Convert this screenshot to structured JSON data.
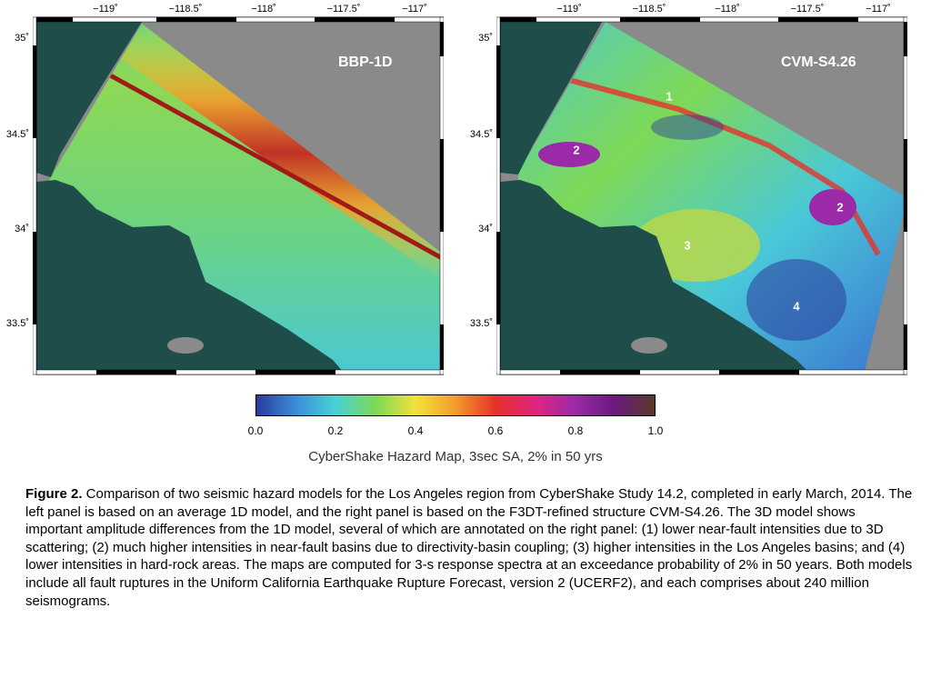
{
  "panels": [
    {
      "title": "BBP-1D",
      "annotations": []
    },
    {
      "title": "CVM-S4.26",
      "annotations": [
        "1",
        "2",
        "2",
        "3",
        "4"
      ]
    }
  ],
  "axes": {
    "x_ticks": [
      "−119˚",
      "−118.5˚",
      "−118˚",
      "−117.5˚",
      "−117˚"
    ],
    "y_ticks": [
      "35˚",
      "34.5˚",
      "34˚",
      "33.5˚"
    ]
  },
  "colorbar": {
    "ticks": [
      "0.0",
      "0.2",
      "0.4",
      "0.6",
      "0.8",
      "1.0"
    ],
    "caption": "CyberShake Hazard Map, 3sec SA, 2% in 50 yrs",
    "colors": [
      "#2b3a9c",
      "#3a8fd8",
      "#49d1d3",
      "#7ed957",
      "#f2e23b",
      "#f39b2a",
      "#e6322a",
      "#e0257f",
      "#9a2aa8",
      "#6a1a7e",
      "#5a3a2a"
    ]
  },
  "caption": {
    "label": "Figure 2.",
    "text": " Comparison of two seismic hazard models for the Los Angeles region from CyberShake Study 14.2, completed in early March, 2014. The left panel is based on an average 1D model, and the right panel is based on the F3DT-refined structure CVM-S4.26. The 3D model shows important amplitude differences from the 1D model, several of which are annotated on the right panel: (1) lower near-fault intensities due to 3D scattering; (2) much higher intensities in near-fault basins due to directivity-basin coupling; (3) higher intensities in the Los Angeles basins; and (4) lower intensities in hard-rock areas. The maps are computed for 3-s response spectra at an exceedance probability of 2% in 50 years. Both models include all fault ruptures in the Uniform California Earthquake Rupture Forecast, version 2 (UCERF2), and each comprises about 240 million seismograms."
  },
  "colors": {
    "ocean": "#1e4d4a",
    "land_gray": "#8a8a8a",
    "frame": "#000000"
  }
}
